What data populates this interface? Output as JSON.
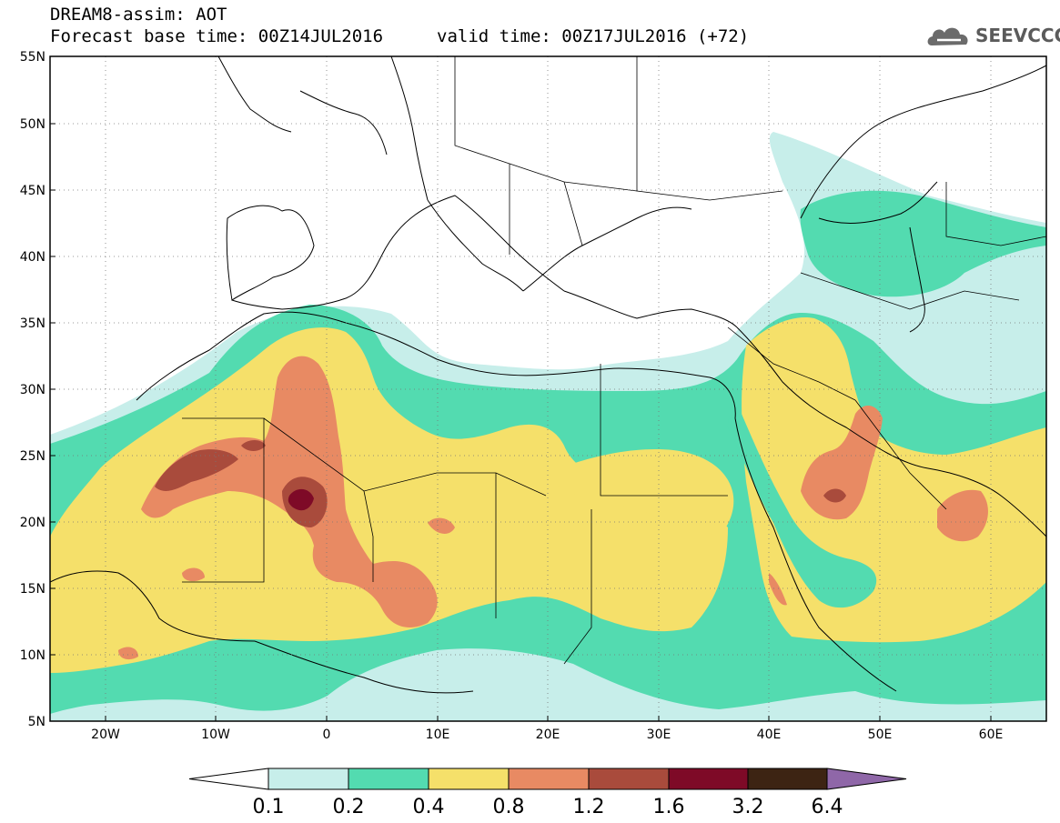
{
  "header": {
    "title": "DREAM8-assim: AOT",
    "base_time": "Forecast base time: 00Z14JUL2016",
    "valid_time": "valid time: 00Z17JUL2016 (+72)",
    "logo_text": "SEEVCCC",
    "logo_icon": "cloud-icon"
  },
  "map": {
    "lon_range": [
      -25,
      65
    ],
    "lat_range": [
      5,
      55
    ],
    "lat_ticks": [
      "55N",
      "50N",
      "45N",
      "40N",
      "35N",
      "30N",
      "25N",
      "20N",
      "15N",
      "10N",
      "5N"
    ],
    "lon_ticks": [
      "20W",
      "10W",
      "0",
      "10E",
      "20E",
      "30E",
      "40E",
      "50E",
      "60E"
    ],
    "grid": "dotted"
  },
  "colorbar": {
    "colors": [
      "#ffffff",
      "#c7eeea",
      "#53dbb0",
      "#f5e06a",
      "#e88a63",
      "#a94b3c",
      "#7e0a27",
      "#3d2413",
      "#8f67a8"
    ],
    "labels": [
      "0.1",
      "0.2",
      "0.4",
      "0.8",
      "1.2",
      "1.6",
      "3.2",
      "6.4"
    ]
  }
}
